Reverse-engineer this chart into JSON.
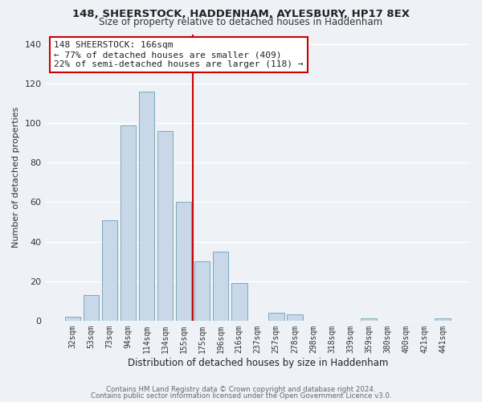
{
  "title1": "148, SHEERSTOCK, HADDENHAM, AYLESBURY, HP17 8EX",
  "title2": "Size of property relative to detached houses in Haddenham",
  "xlabel": "Distribution of detached houses by size in Haddenham",
  "ylabel": "Number of detached properties",
  "bar_labels": [
    "32sqm",
    "53sqm",
    "73sqm",
    "94sqm",
    "114sqm",
    "134sqm",
    "155sqm",
    "175sqm",
    "196sqm",
    "216sqm",
    "237sqm",
    "257sqm",
    "278sqm",
    "298sqm",
    "318sqm",
    "339sqm",
    "359sqm",
    "380sqm",
    "400sqm",
    "421sqm",
    "441sqm"
  ],
  "bar_values": [
    2,
    13,
    51,
    99,
    116,
    96,
    60,
    30,
    35,
    19,
    0,
    4,
    3,
    0,
    0,
    0,
    1,
    0,
    0,
    0,
    1
  ],
  "bar_color": "#c8d8e8",
  "bar_edge_color": "#7aaabb",
  "vline_color": "#cc0000",
  "annotation_line1": "148 SHEERSTOCK: 166sqm",
  "annotation_line2": "← 77% of detached houses are smaller (409)",
  "annotation_line3": "22% of semi-detached houses are larger (118) →",
  "box_edge_color": "#cc0000",
  "ylim": [
    0,
    145
  ],
  "yticks": [
    0,
    20,
    40,
    60,
    80,
    100,
    120,
    140
  ],
  "footer1": "Contains HM Land Registry data © Crown copyright and database right 2024.",
  "footer2": "Contains public sector information licensed under the Open Government Licence v3.0.",
  "background_color": "#eef2f7",
  "grid_color": "white"
}
